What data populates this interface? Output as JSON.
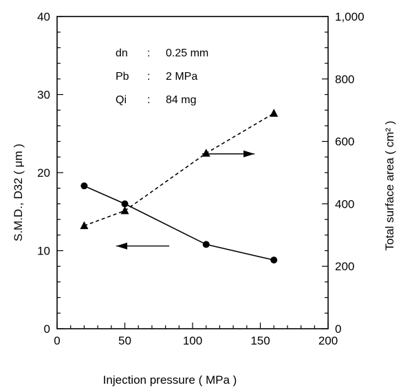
{
  "chart_data": {
    "type": "line",
    "xlabel": "Injection pressure ( MPa )",
    "ylabel_left": "S.M.D., D32 ( μm )",
    "ylabel_right": "Total surface area ( cm² )",
    "xlim": [
      0,
      200
    ],
    "ylim_left": [
      0,
      40
    ],
    "ylim_right": [
      0,
      1000
    ],
    "x_ticks": [
      "0",
      "50",
      "100",
      "150",
      "200"
    ],
    "y_left_ticks": [
      "0",
      "10",
      "20",
      "30",
      "40"
    ],
    "y_right_ticks": [
      "0",
      "200",
      "400",
      "600",
      "800",
      "1,000"
    ],
    "grid": false,
    "legend": "none",
    "annotations": [
      {
        "name": "dn",
        "sep": ":",
        "value": "0.25 mm"
      },
      {
        "name": "Pb",
        "sep": ":",
        "value": "2 MPa"
      },
      {
        "name": "Qi",
        "sep": ":",
        "value": "84 mg"
      }
    ],
    "series": [
      {
        "axis": "left",
        "marker": "circle",
        "line": "solid",
        "x": [
          20,
          50,
          110,
          160
        ],
        "y": [
          18.3,
          16.0,
          10.8,
          8.8
        ]
      },
      {
        "axis": "right",
        "marker": "triangle",
        "line": "dashed",
        "x": [
          20,
          50,
          110,
          160
        ],
        "y": [
          330,
          378,
          562,
          690
        ]
      }
    ]
  }
}
